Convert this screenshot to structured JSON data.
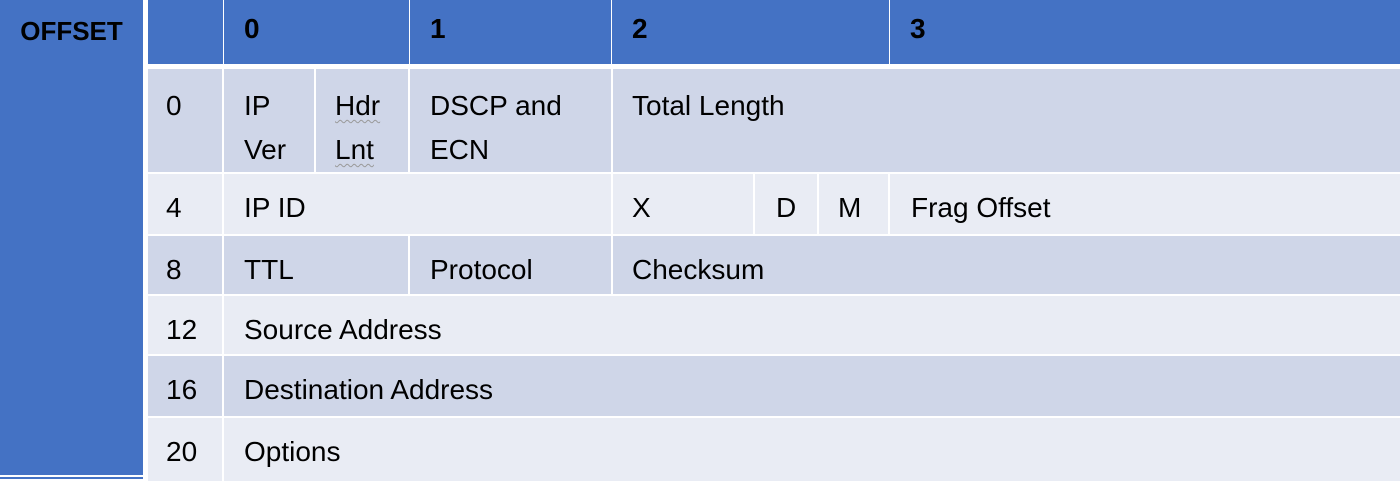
{
  "offset_title": "OFFSET",
  "header": {
    "cols": [
      "0",
      "1",
      "2",
      "3"
    ]
  },
  "rows": [
    {
      "offset": "0",
      "cells": [
        "IP Ver",
        "Hdr Lnt",
        "DSCP and ECN",
        "Total Length"
      ]
    },
    {
      "offset": "4",
      "cells": [
        "IP ID",
        "X",
        "D",
        "M",
        "Frag Offset"
      ]
    },
    {
      "offset": "8",
      "cells": [
        "TTL",
        "Protocol",
        "Checksum"
      ]
    },
    {
      "offset": "12",
      "cells": [
        "Source Address"
      ]
    },
    {
      "offset": "16",
      "cells": [
        "Destination Address"
      ]
    },
    {
      "offset": "20",
      "cells": [
        "Options"
      ]
    }
  ],
  "colors": {
    "header_blue": "#4472c4",
    "row_dark": "#cfd6e8",
    "row_light": "#e9ecf4"
  }
}
